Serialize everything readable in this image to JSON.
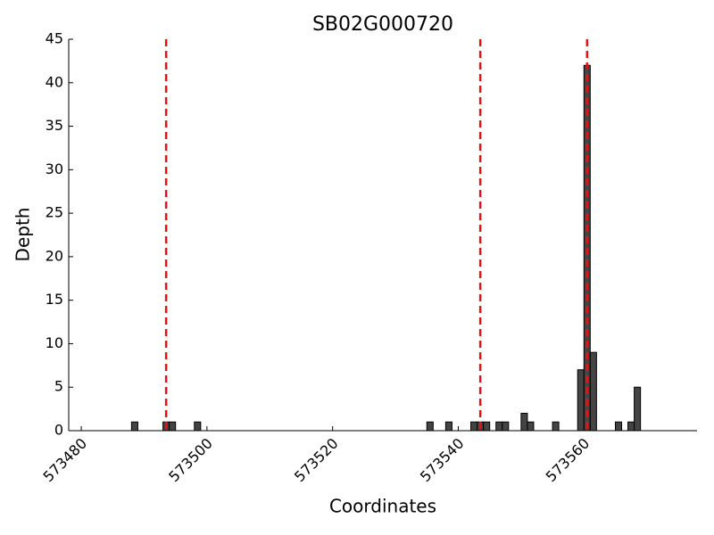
{
  "chart_data": {
    "type": "bar",
    "title": "SB02G000720",
    "xlabel": "Coordinates",
    "ylabel": "Depth",
    "x": [
      573488,
      573493,
      573494,
      573498,
      573535,
      573538,
      573542,
      573543,
      573544,
      573546,
      573547,
      573550,
      573551,
      573555,
      573559,
      573560,
      573561,
      573565,
      573567,
      573568
    ],
    "values": [
      1,
      1,
      1,
      1,
      1,
      1,
      1,
      1,
      1,
      1,
      1,
      2,
      1,
      1,
      7,
      42,
      9,
      1,
      1,
      5
    ],
    "color": "#444444",
    "vlines": [
      573493.5,
      573543.5,
      573560.5
    ],
    "vline_color": "#ee1111",
    "xlim": [
      573478,
      573578
    ],
    "xticks": [
      573480,
      573500,
      573520,
      573540,
      573560
    ],
    "ylim": [
      0,
      45
    ],
    "yticks": [
      0,
      5,
      10,
      15,
      20,
      25,
      30,
      35,
      40,
      45
    ],
    "grid": false
  }
}
